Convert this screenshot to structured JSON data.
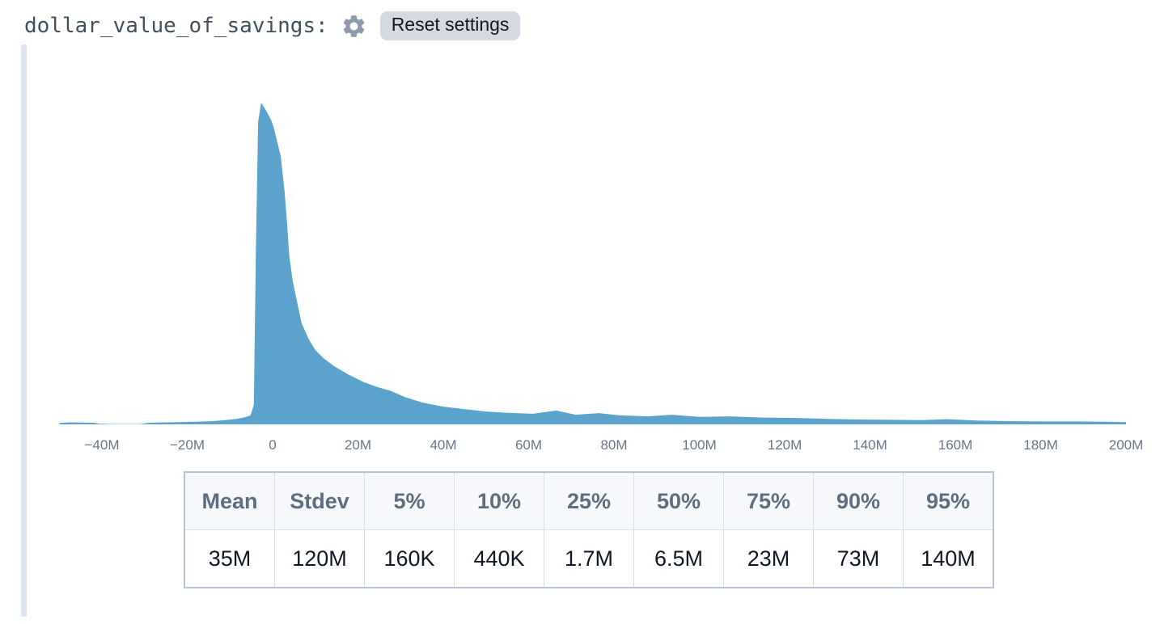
{
  "header": {
    "title": "dollar_value_of_savings:",
    "reset_label": "Reset settings",
    "gear_icon": "gear-icon"
  },
  "colors": {
    "area_fill": "#5ba2cd",
    "gear_icon": "#8c9aab",
    "reset_button_bg": "#d4dae2",
    "cell_focus_bar": "#dfe5ef",
    "tick_text": "#66758a",
    "table_header_text": "#5d6e81",
    "table_value_text": "#101828",
    "table_border": "#b5c2d3"
  },
  "chart_data": {
    "type": "area",
    "title": "",
    "xlabel": "",
    "ylabel": "",
    "x_unit": "millions (M) of dollars",
    "xlim": [
      -50,
      200
    ],
    "ylim": [
      0,
      1
    ],
    "y_note": "kernel density, normalized so peak = 1",
    "grid": false,
    "legend": "none",
    "fill": "#5ba2cd",
    "peak": {
      "x": -2.7,
      "density": 1.0
    },
    "x_ticks": [
      {
        "label": "−40M",
        "value": -40
      },
      {
        "label": "−20M",
        "value": -20
      },
      {
        "label": "0",
        "value": 0
      },
      {
        "label": "20M",
        "value": 20
      },
      {
        "label": "40M",
        "value": 40
      },
      {
        "label": "60M",
        "value": 60
      },
      {
        "label": "80M",
        "value": 80
      },
      {
        "label": "100M",
        "value": 100
      },
      {
        "label": "120M",
        "value": 120
      },
      {
        "label": "140M",
        "value": 140
      },
      {
        "label": "160M",
        "value": 160
      },
      {
        "label": "180M",
        "value": 180
      },
      {
        "label": "200M",
        "value": 200
      }
    ],
    "points": [
      [
        -50,
        0.004
      ],
      [
        -48,
        0.006
      ],
      [
        -46,
        0.006
      ],
      [
        -42,
        0.005
      ],
      [
        -40.5,
        0.002
      ],
      [
        -37,
        0.001
      ],
      [
        -31,
        0.001
      ],
      [
        -29,
        0.005
      ],
      [
        -26,
        0.006
      ],
      [
        -22,
        0.007
      ],
      [
        -18,
        0.008
      ],
      [
        -14,
        0.01
      ],
      [
        -11,
        0.013
      ],
      [
        -8.5,
        0.017
      ],
      [
        -6.5,
        0.022
      ],
      [
        -5.2,
        0.028
      ],
      [
        -4.4,
        0.06
      ],
      [
        -3.9,
        0.55
      ],
      [
        -3.4,
        0.94
      ],
      [
        -2.7,
        1.0
      ],
      [
        -1.5,
        0.975
      ],
      [
        -0.3,
        0.945
      ],
      [
        0.2,
        0.925
      ],
      [
        1.9,
        0.835
      ],
      [
        2.8,
        0.724
      ],
      [
        3.4,
        0.623
      ],
      [
        3.9,
        0.523
      ],
      [
        4.7,
        0.447
      ],
      [
        5.7,
        0.382
      ],
      [
        6.8,
        0.314
      ],
      [
        8.5,
        0.264
      ],
      [
        10,
        0.231
      ],
      [
        11.9,
        0.206
      ],
      [
        14.4,
        0.181
      ],
      [
        17.6,
        0.156
      ],
      [
        21.4,
        0.131
      ],
      [
        24.5,
        0.116
      ],
      [
        27.7,
        0.104
      ],
      [
        31,
        0.085
      ],
      [
        35,
        0.068
      ],
      [
        40,
        0.055
      ],
      [
        45,
        0.047
      ],
      [
        50,
        0.04
      ],
      [
        55,
        0.036
      ],
      [
        61,
        0.033
      ],
      [
        66.5,
        0.043
      ],
      [
        71,
        0.03
      ],
      [
        76.5,
        0.035
      ],
      [
        81.5,
        0.028
      ],
      [
        88,
        0.025
      ],
      [
        93.5,
        0.03
      ],
      [
        100,
        0.023
      ],
      [
        107,
        0.025
      ],
      [
        115,
        0.021
      ],
      [
        122,
        0.02
      ],
      [
        130,
        0.017
      ],
      [
        137,
        0.015
      ],
      [
        145,
        0.014
      ],
      [
        152,
        0.013
      ],
      [
        158,
        0.016
      ],
      [
        165,
        0.012
      ],
      [
        172,
        0.01
      ],
      [
        180,
        0.009
      ],
      [
        188,
        0.009
      ],
      [
        195,
        0.008
      ],
      [
        200,
        0.007
      ]
    ]
  },
  "stats_table": {
    "headers": [
      "Mean",
      "Stdev",
      "5%",
      "10%",
      "25%",
      "50%",
      "75%",
      "90%",
      "95%"
    ],
    "values": [
      "35M",
      "120M",
      "160K",
      "440K",
      "1.7M",
      "6.5M",
      "23M",
      "73M",
      "140M"
    ]
  }
}
